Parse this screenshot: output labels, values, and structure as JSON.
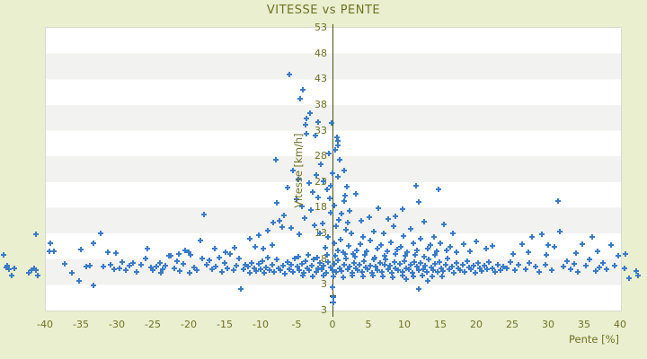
{
  "title": "VITESSE vs PENTE",
  "colors": {
    "background": "#e9efcf",
    "band_light": "#ffffff",
    "band_dark": "#f2f2f0",
    "axis_line": "#494f17",
    "text": "#6e7223",
    "marker": "#3a7bc8",
    "plot_border": "#d9d9d0"
  },
  "chart_data": {
    "type": "scatter",
    "title": "VITESSE vs PENTE",
    "xlabel": "Pente [%]",
    "ylabel": "Vitesse [km/h]",
    "xlim": [
      -40,
      40
    ],
    "ylim": [
      -2,
      53
    ],
    "x_ticks": [
      -40,
      -35,
      -30,
      -25,
      -20,
      -15,
      -10,
      -5,
      0,
      5,
      10,
      15,
      20,
      25,
      30,
      35,
      40
    ],
    "y_ticks": [
      53,
      48,
      43,
      38,
      33,
      28,
      23,
      18,
      13,
      8,
      3
    ],
    "y_axis_bottom_label": "3",
    "grid": "alternating-horizontal-bands-per-5-units",
    "legend": "none",
    "marker": "plus",
    "marker_color": "#3a7bc8",
    "points": [
      [
        -45.8,
        8.6
      ],
      [
        -45.4,
        6.2
      ],
      [
        -45.2,
        6.6
      ],
      [
        -45.0,
        5.8
      ],
      [
        -44.6,
        4.7
      ],
      [
        -44.2,
        6.0
      ],
      [
        -42.3,
        5.2
      ],
      [
        -41.9,
        5.6
      ],
      [
        -41.5,
        6.0
      ],
      [
        -41.3,
        5.7
      ],
      [
        -41.0,
        4.7
      ],
      [
        -41.2,
        12.7
      ],
      [
        -39.3,
        10.9
      ],
      [
        -39.4,
        9.4
      ],
      [
        -38.7,
        9.3
      ],
      [
        -37.3,
        6.9
      ],
      [
        -36.3,
        5.1
      ],
      [
        -35.2,
        3.6
      ],
      [
        -35.0,
        9.7
      ],
      [
        -34.2,
        6.4
      ],
      [
        -33.8,
        6.6
      ],
      [
        -33.2,
        11.0
      ],
      [
        -33.3,
        2.7
      ],
      [
        -32.3,
        12.8
      ],
      [
        -31.9,
        6.3
      ],
      [
        -31.3,
        9.2
      ],
      [
        -30.9,
        6.8
      ],
      [
        -30.4,
        5.9
      ],
      [
        -30.1,
        9.0
      ],
      [
        -29.6,
        6.1
      ],
      [
        -29.2,
        7.2
      ],
      [
        -28.8,
        5.6
      ],
      [
        -28.3,
        6.5
      ],
      [
        -27.7,
        7.0
      ],
      [
        -27.2,
        5.4
      ],
      [
        -26.6,
        6.8
      ],
      [
        -26.0,
        8.0
      ],
      [
        -25.7,
        9.9
      ],
      [
        -25.3,
        6.2
      ],
      [
        -25.0,
        5.7
      ],
      [
        -24.5,
        6.3
      ],
      [
        -24.0,
        7.1
      ],
      [
        -23.9,
        5.2
      ],
      [
        -23.6,
        5.8
      ],
      [
        -23.2,
        6.6
      ],
      [
        -22.8,
        8.5
      ],
      [
        -22.5,
        8.4
      ],
      [
        -22.0,
        6.0
      ],
      [
        -21.6,
        7.4
      ],
      [
        -21.4,
        8.9
      ],
      [
        -21.2,
        5.5
      ],
      [
        -20.8,
        6.9
      ],
      [
        -20.5,
        9.5
      ],
      [
        -20.0,
        9.2
      ],
      [
        -19.9,
        5.1
      ],
      [
        -19.7,
        8.7
      ],
      [
        -19.3,
        6.2
      ],
      [
        -18.9,
        5.6
      ],
      [
        -18.4,
        11.4
      ],
      [
        -18.1,
        8.0
      ],
      [
        -17.9,
        16.5
      ],
      [
        -17.5,
        6.8
      ],
      [
        -17.1,
        7.6
      ],
      [
        -16.7,
        5.9
      ],
      [
        -16.4,
        9.9
      ],
      [
        -16.2,
        6.4
      ],
      [
        -15.8,
        8.1
      ],
      [
        -15.4,
        5.3
      ],
      [
        -15.0,
        7.0
      ],
      [
        -14.9,
        9.1
      ],
      [
        -14.6,
        6.1
      ],
      [
        -14.2,
        8.8
      ],
      [
        -13.8,
        5.7
      ],
      [
        -13.6,
        10.0
      ],
      [
        -13.4,
        6.6
      ],
      [
        -13.0,
        7.9
      ],
      [
        -12.7,
        2.1
      ],
      [
        -12.4,
        5.9
      ],
      [
        -12.1,
        6.8
      ],
      [
        -11.5,
        11.8
      ],
      [
        -10.8,
        10.2
      ],
      [
        -10.2,
        12.5
      ],
      [
        -9.6,
        9.8
      ],
      [
        -9.0,
        13.4
      ],
      [
        -8.4,
        10.6
      ],
      [
        -8.2,
        14.9
      ],
      [
        -7.8,
        18.7
      ],
      [
        -7.0,
        14.1
      ],
      [
        -11.8,
        6.4
      ],
      [
        -11.5,
        5.2
      ],
      [
        -11.2,
        7.1
      ],
      [
        -10.9,
        6.0
      ],
      [
        -10.6,
        5.5
      ],
      [
        -10.3,
        6.9
      ],
      [
        -10.0,
        5.8
      ],
      [
        -9.8,
        7.4
      ],
      [
        -9.5,
        5.1
      ],
      [
        -9.2,
        6.2
      ],
      [
        -9.0,
        8.1
      ],
      [
        -8.7,
        5.6
      ],
      [
        -8.4,
        6.7
      ],
      [
        -8.1,
        5.3
      ],
      [
        -7.8,
        7.7
      ],
      [
        -7.5,
        6.1
      ],
      [
        -7.2,
        5.7
      ],
      [
        -6.9,
        6.6
      ],
      [
        -6.6,
        5.0
      ],
      [
        -6.3,
        7.2
      ],
      [
        -6.0,
        5.9
      ],
      [
        -5.8,
        6.8
      ],
      [
        -5.5,
        5.4
      ],
      [
        -5.2,
        7.9
      ],
      [
        -4.9,
        6.3
      ],
      [
        -4.6,
        5.6
      ],
      [
        -4.3,
        6.9
      ],
      [
        -4.0,
        5.2
      ],
      [
        -3.8,
        7.5
      ],
      [
        -3.5,
        6.0
      ],
      [
        -3.2,
        5.7
      ],
      [
        -2.9,
        6.5
      ],
      [
        -2.6,
        7.8
      ],
      [
        -2.3,
        5.3
      ],
      [
        -2.0,
        6.1
      ],
      [
        -1.8,
        7.0
      ],
      [
        -1.5,
        5.8
      ],
      [
        -1.2,
        6.6
      ],
      [
        -0.9,
        5.1
      ],
      [
        -0.6,
        7.3
      ],
      [
        -0.3,
        6.2
      ],
      [
        0.0,
        5.6
      ],
      [
        0.2,
        6.9
      ],
      [
        0.5,
        5.3
      ],
      [
        0.8,
        7.6
      ],
      [
        1.0,
        6.0
      ],
      [
        1.3,
        5.5
      ],
      [
        1.6,
        6.7
      ],
      [
        1.9,
        7.9
      ],
      [
        2.1,
        5.8
      ],
      [
        2.4,
        6.4
      ],
      [
        2.7,
        5.2
      ],
      [
        3.0,
        7.1
      ],
      [
        3.2,
        6.1
      ],
      [
        3.5,
        5.7
      ],
      [
        3.8,
        6.8
      ],
      [
        4.1,
        5.4
      ],
      [
        4.4,
        7.4
      ],
      [
        4.6,
        6.2
      ],
      [
        4.9,
        5.9
      ],
      [
        5.2,
        6.6
      ],
      [
        5.5,
        5.1
      ],
      [
        5.8,
        7.7
      ],
      [
        6.0,
        6.3
      ],
      [
        6.3,
        5.6
      ],
      [
        6.6,
        7.0
      ],
      [
        6.9,
        5.3
      ],
      [
        7.2,
        6.8
      ],
      [
        7.4,
        7.8
      ],
      [
        7.7,
        5.9
      ],
      [
        8.0,
        6.5
      ],
      [
        8.3,
        5.2
      ],
      [
        8.6,
        7.2
      ],
      [
        8.8,
        6.0
      ],
      [
        9.1,
        5.7
      ],
      [
        9.4,
        6.9
      ],
      [
        9.7,
        5.4
      ],
      [
        10.0,
        7.5
      ],
      [
        10.3,
        6.1
      ],
      [
        10.6,
        5.8
      ],
      [
        10.9,
        6.7
      ],
      [
        11.1,
        5.2
      ],
      [
        11.4,
        7.3
      ],
      [
        11.7,
        6.4
      ],
      [
        12.0,
        5.6
      ],
      [
        12.3,
        7.0
      ],
      [
        12.6,
        5.9
      ],
      [
        12.9,
        6.6
      ],
      [
        13.1,
        5.3
      ],
      [
        13.4,
        7.7
      ],
      [
        13.7,
        6.2
      ],
      [
        14.0,
        5.7
      ],
      [
        14.3,
        6.9
      ],
      [
        14.6,
        5.4
      ],
      [
        14.9,
        7.2
      ],
      [
        15.1,
        6.0
      ],
      [
        15.4,
        5.5
      ],
      [
        15.7,
        6.8
      ],
      [
        16.0,
        7.9
      ],
      [
        16.3,
        5.8
      ],
      [
        16.6,
        6.3
      ],
      [
        16.9,
        5.2
      ],
      [
        17.2,
        7.0
      ],
      [
        17.5,
        6.1
      ],
      [
        17.8,
        5.6
      ],
      [
        18.1,
        6.7
      ],
      [
        18.4,
        5.3
      ],
      [
        18.7,
        7.4
      ],
      [
        19.0,
        6.2
      ],
      [
        19.3,
        5.8
      ],
      [
        19.6,
        6.5
      ],
      [
        19.9,
        5.1
      ],
      [
        20.2,
        7.1
      ],
      [
        20.5,
        6.0
      ],
      [
        20.8,
        5.5
      ],
      [
        21.1,
        6.6
      ],
      [
        21.5,
        5.9
      ],
      [
        21.8,
        7.2
      ],
      [
        22.2,
        6.1
      ],
      [
        22.6,
        5.4
      ],
      [
        23.0,
        6.8
      ],
      [
        23.4,
        5.7
      ],
      [
        23.8,
        6.3
      ],
      [
        -4.7,
        8.3
      ],
      [
        -3.4,
        8.6
      ],
      [
        -2.1,
        8.2
      ],
      [
        -0.8,
        8.7
      ],
      [
        0.4,
        8.4
      ],
      [
        1.7,
        8.8
      ],
      [
        3.1,
        8.3
      ],
      [
        4.5,
        8.6
      ],
      [
        5.9,
        8.2
      ],
      [
        7.3,
        8.5
      ],
      [
        8.7,
        8.8
      ],
      [
        10.1,
        8.4
      ],
      [
        11.5,
        8.7
      ],
      [
        12.8,
        8.3
      ],
      [
        14.2,
        8.6
      ],
      [
        -4.1,
        4.6
      ],
      [
        -2.7,
        4.4
      ],
      [
        -1.3,
        4.7
      ],
      [
        0.1,
        4.5
      ],
      [
        1.5,
        4.3
      ],
      [
        2.8,
        4.6
      ],
      [
        4.2,
        4.4
      ],
      [
        5.6,
        4.7
      ],
      [
        7.0,
        4.5
      ],
      [
        8.4,
        4.3
      ],
      [
        9.8,
        4.6
      ],
      [
        11.2,
        4.4
      ],
      [
        12.5,
        4.7
      ],
      [
        13.9,
        4.5
      ],
      [
        15.3,
        4.4
      ],
      [
        3.4,
        9.6
      ],
      [
        3.9,
        10.8
      ],
      [
        4.3,
        12.1
      ],
      [
        4.8,
        9.3
      ],
      [
        5.3,
        11.4
      ],
      [
        5.7,
        13.2
      ],
      [
        6.2,
        9.9
      ],
      [
        6.7,
        10.6
      ],
      [
        7.1,
        12.8
      ],
      [
        7.6,
        9.4
      ],
      [
        8.1,
        11.1
      ],
      [
        8.5,
        14.3
      ],
      [
        9.0,
        9.7
      ],
      [
        9.5,
        10.3
      ],
      [
        9.9,
        12.4
      ],
      [
        10.4,
        9.2
      ],
      [
        10.9,
        13.7
      ],
      [
        11.3,
        10.9
      ],
      [
        11.8,
        9.5
      ],
      [
        12.2,
        11.8
      ],
      [
        12.7,
        15.1
      ],
      [
        13.2,
        9.8
      ],
      [
        13.6,
        10.5
      ],
      [
        14.1,
        12.2
      ],
      [
        14.5,
        9.3
      ],
      [
        15.0,
        11.0
      ],
      [
        15.5,
        14.6
      ],
      [
        15.9,
        9.6
      ],
      [
        16.4,
        10.2
      ],
      [
        16.8,
        12.9
      ],
      [
        17.3,
        9.1
      ],
      [
        18.2,
        10.7
      ],
      [
        19.1,
        9.4
      ],
      [
        20.0,
        11.2
      ],
      [
        21.4,
        9.8
      ],
      [
        22.3,
        10.4
      ],
      [
        11.6,
        22.1
      ],
      [
        14.7,
        21.4
      ],
      [
        12.0,
        18.9
      ],
      [
        9.7,
        17.5
      ],
      [
        8.8,
        16.2
      ],
      [
        6.4,
        17.8
      ],
      [
        5.1,
        16.0
      ],
      [
        4.0,
        15.3
      ],
      [
        7.7,
        15.6
      ],
      [
        12.0,
        2.0
      ],
      [
        10.2,
        3.9
      ],
      [
        13.3,
        3.6
      ],
      [
        0.6,
        31.6
      ],
      [
        0.7,
        30.8
      ],
      [
        0.7,
        29.9
      ],
      [
        0.4,
        29.0
      ],
      [
        1.0,
        27.1
      ],
      [
        -0.1,
        34.3
      ],
      [
        -0.5,
        28.4
      ],
      [
        -1.6,
        26.3
      ],
      [
        -1.2,
        23.0
      ],
      [
        -0.8,
        21.4
      ],
      [
        1.6,
        25.1
      ],
      [
        2.0,
        21.9
      ],
      [
        3.3,
        20.6
      ],
      [
        1.7,
        20.1
      ],
      [
        1.6,
        19.1
      ],
      [
        1.3,
        16.6
      ],
      [
        0.3,
        18.2
      ],
      [
        0.9,
        15.4
      ],
      [
        -0.3,
        16.8
      ],
      [
        0.5,
        14.2
      ],
      [
        1.9,
        13.6
      ],
      [
        2.6,
        12.9
      ],
      [
        -0.6,
        12.2
      ],
      [
        1.1,
        11.7
      ],
      [
        0.2,
        10.9
      ],
      [
        2.2,
        10.4
      ],
      [
        -1.0,
        10.1
      ],
      [
        0.7,
        9.6
      ],
      [
        1.5,
        9.2
      ],
      [
        2.9,
        8.8
      ],
      [
        0.0,
        24.5
      ],
      [
        -0.2,
        22.1
      ],
      [
        0.8,
        23.8
      ],
      [
        2.4,
        17.2
      ],
      [
        2.1,
        15.0
      ],
      [
        -1.4,
        14.8
      ],
      [
        -1.8,
        12.8
      ],
      [
        -0.4,
        19.6
      ],
      [
        0.0,
        2.3
      ],
      [
        0.1,
        0.5
      ],
      [
        0.1,
        -0.6
      ],
      [
        -6.0,
        43.8
      ],
      [
        -4.1,
        40.7
      ],
      [
        -4.5,
        39.1
      ],
      [
        -3.1,
        36.2
      ],
      [
        -3.6,
        35.2
      ],
      [
        -3.8,
        34.0
      ],
      [
        -2.0,
        34.5
      ],
      [
        -3.6,
        32.2
      ],
      [
        -2.4,
        31.9
      ],
      [
        -7.9,
        27.1
      ],
      [
        -5.5,
        25.0
      ],
      [
        -4.8,
        23.4
      ],
      [
        -6.2,
        21.8
      ],
      [
        -5.0,
        19.5
      ],
      [
        -4.2,
        18.0
      ],
      [
        -3.3,
        22.6
      ],
      [
        -2.8,
        20.9
      ],
      [
        -2.2,
        24.2
      ],
      [
        -6.8,
        16.4
      ],
      [
        -7.4,
        15.2
      ],
      [
        -5.8,
        13.9
      ],
      [
        -4.6,
        12.6
      ],
      [
        -3.9,
        15.8
      ],
      [
        -3.0,
        17.3
      ],
      [
        -2.5,
        14.5
      ],
      [
        -2.0,
        19.8
      ],
      [
        24.3,
        6.1
      ],
      [
        24.8,
        7.3
      ],
      [
        25.4,
        5.6
      ],
      [
        25.9,
        6.7
      ],
      [
        26.4,
        10.8
      ],
      [
        26.9,
        5.9
      ],
      [
        27.4,
        7.0
      ],
      [
        27.8,
        12.2
      ],
      [
        28.3,
        6.3
      ],
      [
        28.8,
        5.4
      ],
      [
        29.1,
        12.7
      ],
      [
        29.6,
        6.8
      ],
      [
        30.0,
        10.5
      ],
      [
        30.5,
        5.7
      ],
      [
        30.9,
        10.3
      ],
      [
        31.4,
        19.1
      ],
      [
        31.6,
        13.2
      ],
      [
        32.1,
        6.4
      ],
      [
        32.6,
        7.5
      ],
      [
        33.1,
        5.8
      ],
      [
        33.6,
        6.9
      ],
      [
        34.1,
        5.3
      ],
      [
        34.7,
        10.7
      ],
      [
        35.2,
        6.6
      ],
      [
        35.7,
        7.8
      ],
      [
        36.1,
        12.1
      ],
      [
        36.6,
        5.5
      ],
      [
        37.1,
        6.2
      ],
      [
        37.6,
        7.1
      ],
      [
        38.1,
        5.9
      ],
      [
        38.8,
        10.6
      ],
      [
        39.2,
        6.5
      ],
      [
        39.7,
        8.4
      ],
      [
        25.1,
        8.9
      ],
      [
        27.2,
        9.2
      ],
      [
        29.8,
        8.6
      ],
      [
        33.9,
        9.0
      ],
      [
        36.9,
        9.4
      ],
      [
        40.8,
        8.8
      ],
      [
        40.6,
        6.1
      ],
      [
        42.3,
        5.5
      ],
      [
        42.5,
        4.7
      ],
      [
        41.3,
        4.1
      ]
    ]
  }
}
